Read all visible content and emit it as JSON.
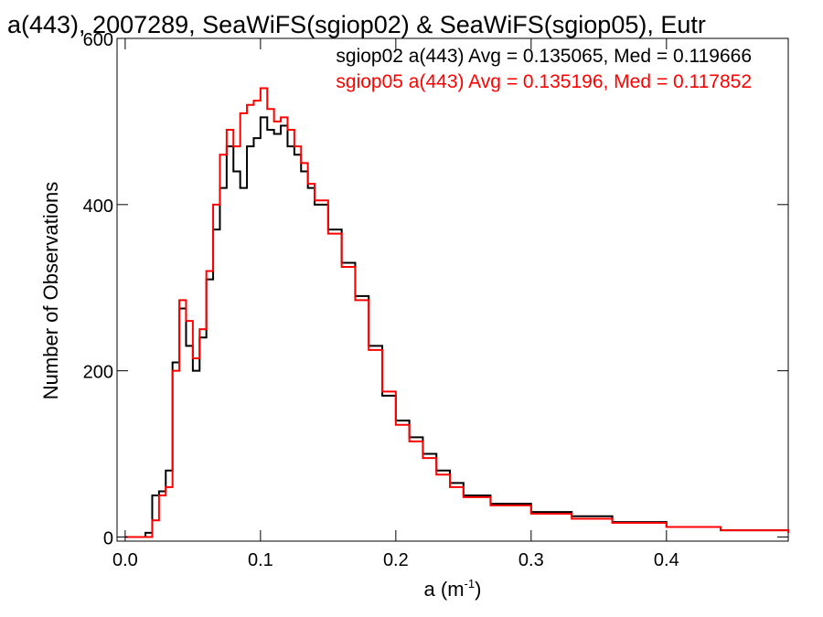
{
  "chart_data": {
    "type": "line",
    "title": "a(443), 2007289, SeaWiFS(sgiop02) & SeaWiFS(sgiop05), Eutr",
    "xlabel": "a (m",
    "xlabel_sup": "-1",
    "xlabel_close": ")",
    "ylabel": "Number of Observations",
    "xlim": [
      -0.006,
      0.49
    ],
    "ylim": [
      -5,
      600
    ],
    "x_ticks": [
      0.0,
      0.1,
      0.2,
      0.3,
      0.4
    ],
    "x_tick_labels": [
      "0.0",
      "0.1",
      "0.2",
      "0.3",
      "0.4"
    ],
    "y_ticks": [
      0,
      200,
      400,
      600
    ],
    "y_tick_labels": [
      "0",
      "200",
      "400",
      "600"
    ],
    "grid": false,
    "legend_placement": "top-right",
    "annotations": [
      {
        "text": "sgiop02 a(443) Avg = 0.135065, Med = 0.119666",
        "color": "#000000"
      },
      {
        "text": "sgiop05 a(443) Avg = 0.135196, Med = 0.117852",
        "color": "#ff0000"
      }
    ],
    "x": [
      0.0,
      0.01,
      0.015,
      0.02,
      0.025,
      0.03,
      0.035,
      0.04,
      0.045,
      0.05,
      0.055,
      0.06,
      0.065,
      0.07,
      0.075,
      0.08,
      0.085,
      0.09,
      0.095,
      0.1,
      0.105,
      0.11,
      0.115,
      0.12,
      0.125,
      0.13,
      0.135,
      0.14,
      0.15,
      0.16,
      0.17,
      0.18,
      0.19,
      0.2,
      0.21,
      0.22,
      0.23,
      0.24,
      0.25,
      0.27,
      0.3,
      0.33,
      0.36,
      0.4,
      0.44,
      0.49
    ],
    "series": [
      {
        "color": "#000000",
        "values": [
          0,
          0,
          5,
          50,
          55,
          80,
          210,
          275,
          230,
          200,
          240,
          310,
          370,
          420,
          470,
          440,
          420,
          470,
          480,
          505,
          490,
          485,
          495,
          470,
          460,
          440,
          420,
          400,
          370,
          330,
          290,
          230,
          170,
          140,
          120,
          100,
          80,
          65,
          50,
          40,
          30,
          25,
          18,
          12,
          8,
          5
        ]
      },
      {
        "color": "#ff0000",
        "values": [
          0,
          0,
          0,
          20,
          50,
          60,
          200,
          285,
          260,
          215,
          250,
          320,
          400,
          460,
          490,
          470,
          510,
          520,
          525,
          540,
          515,
          500,
          505,
          490,
          470,
          450,
          425,
          405,
          365,
          325,
          285,
          225,
          175,
          135,
          115,
          95,
          75,
          60,
          48,
          38,
          28,
          22,
          17,
          12,
          8,
          5
        ]
      }
    ]
  }
}
